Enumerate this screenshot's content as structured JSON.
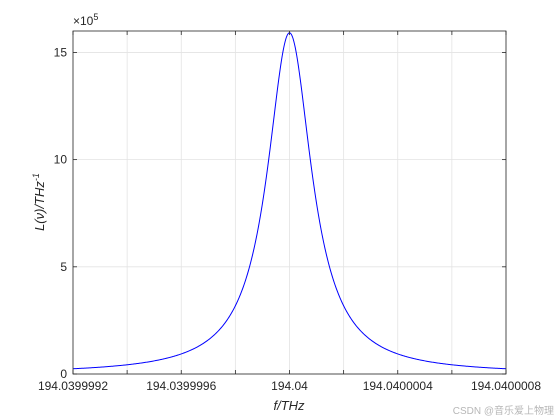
{
  "chart_data": {
    "type": "line",
    "title": "",
    "xlabel": "f/THz",
    "ylabel_main": "L(ν)/THz",
    "ylabel_sup": "-1",
    "y_multiplier_prefix": "×10",
    "y_multiplier_exp": "5",
    "xlim": [
      194.0399992,
      194.0400008
    ],
    "ylim": [
      0,
      1600000
    ],
    "grid": true,
    "x_ticks": [
      {
        "value": 194.0399992,
        "label": "194.0399992"
      },
      {
        "value": 194.0399996,
        "label": "194.0399996"
      },
      {
        "value": 194.04,
        "label": "194.04"
      },
      {
        "value": 194.0400004,
        "label": "194.0400004"
      },
      {
        "value": 194.0400008,
        "label": "194.0400008"
      }
    ],
    "x_grid": [
      194.0399992,
      194.0399994,
      194.0399996,
      194.0399998,
      194.04,
      194.0400002,
      194.0400004,
      194.0400006,
      194.0400008
    ],
    "y_ticks": [
      {
        "value": 0,
        "label": "0"
      },
      {
        "value": 500000,
        "label": "5"
      },
      {
        "value": 1000000,
        "label": "10"
      },
      {
        "value": 1500000,
        "label": "15"
      }
    ],
    "series": [
      {
        "color": "#0000ff",
        "lorentzian": {
          "center": 194.04,
          "fwhm": 2e-07,
          "peak": 1591549
        }
      }
    ]
  },
  "watermark": "CSDN @音乐爱上物理"
}
